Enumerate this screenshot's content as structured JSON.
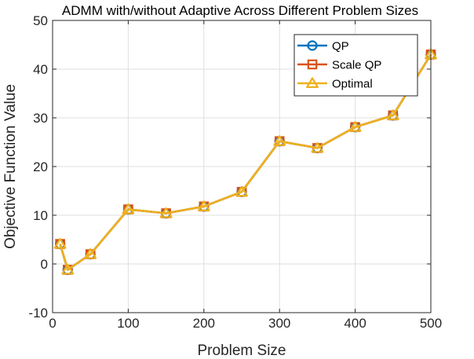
{
  "chart_data": {
    "type": "line",
    "title": "ADMM with/without Adaptive Across Different Problem Sizes",
    "xlabel": "Problem Size",
    "ylabel": "Objective Function Value",
    "xlim": [
      0,
      500
    ],
    "ylim": [
      -10,
      50
    ],
    "xticks": [
      0,
      100,
      200,
      300,
      400,
      500
    ],
    "yticks": [
      -10,
      0,
      10,
      20,
      30,
      40,
      50
    ],
    "grid": true,
    "legend_position": "top-right",
    "x": [
      10,
      20,
      50,
      100,
      150,
      200,
      250,
      300,
      350,
      400,
      450,
      500
    ],
    "series": [
      {
        "name": "QP",
        "marker": "circle",
        "color": "#0072BD",
        "values": [
          4.1,
          -1.2,
          2.0,
          11.2,
          10.4,
          11.8,
          14.8,
          25.2,
          23.8,
          28.1,
          30.5,
          43.0
        ]
      },
      {
        "name": "Scale QP",
        "marker": "square",
        "color": "#D95319",
        "values": [
          4.1,
          -1.2,
          2.0,
          11.2,
          10.4,
          11.8,
          14.8,
          25.2,
          23.8,
          28.1,
          30.5,
          43.0
        ]
      },
      {
        "name": "Optimal",
        "marker": "triangle",
        "color": "#EDB120",
        "values": [
          4.1,
          -1.2,
          2.0,
          11.2,
          10.4,
          11.8,
          14.8,
          25.2,
          23.8,
          28.1,
          30.5,
          43.0
        ]
      }
    ]
  }
}
